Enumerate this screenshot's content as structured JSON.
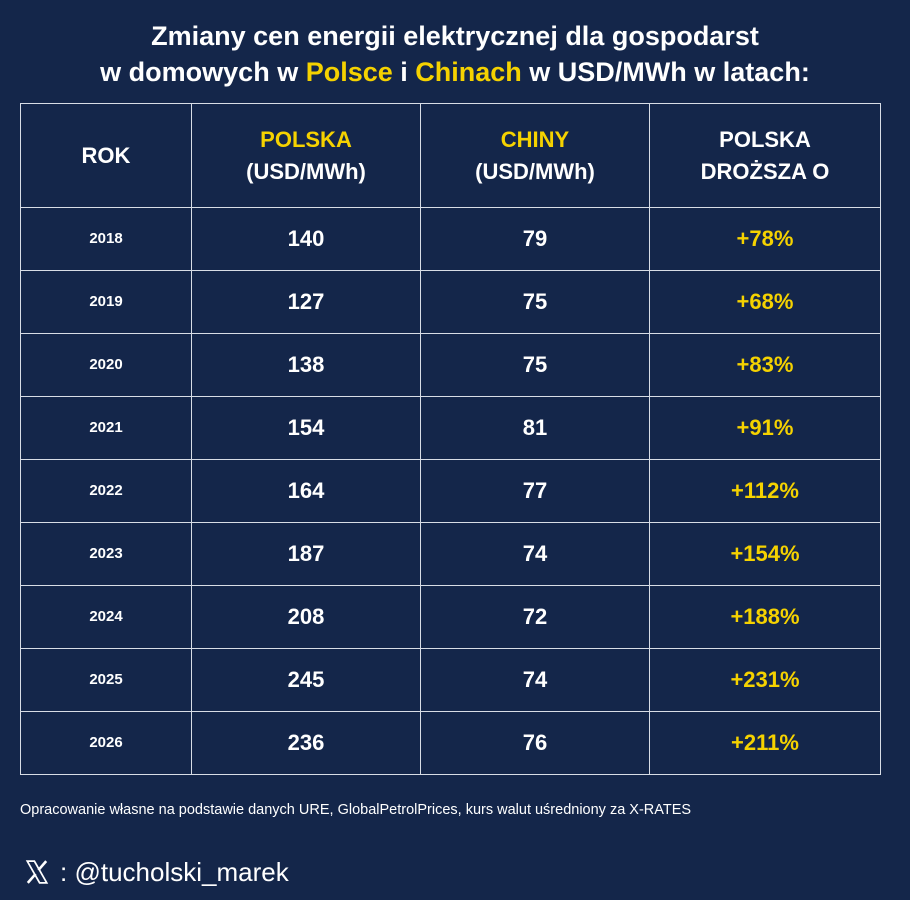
{
  "title": {
    "line1": "Zmiany cen energii elektrycznej dla gospodarst",
    "line2_part1": "w domowych w ",
    "line2_polska": "Polsce",
    "line2_part2": " i ",
    "line2_chiny": "Chinach",
    "line2_part3": " w USD/MWh w latach:"
  },
  "headers": {
    "rok": "ROK",
    "polska": "POLSKA",
    "polska_unit": "(USD/MWh)",
    "chiny": "CHINY",
    "chiny_unit": "(USD/MWh)",
    "diff_line1": "POLSKA",
    "diff_line2": "DROŻSZA O"
  },
  "chart_data": {
    "type": "table",
    "columns": [
      "ROK",
      "POLSKA (USD/MWh)",
      "CHINY (USD/MWh)",
      "POLSKA DROŻSZA O"
    ],
    "rows": [
      {
        "year": "2018",
        "polska": "140",
        "chiny": "79",
        "diff": "+78%"
      },
      {
        "year": "2019",
        "polska": "127",
        "chiny": "75",
        "diff": "+68%"
      },
      {
        "year": "2020",
        "polska": "138",
        "chiny": "75",
        "diff": "+83%"
      },
      {
        "year": "2021",
        "polska": "154",
        "chiny": "81",
        "diff": "+91%"
      },
      {
        "year": "2022",
        "polska": "164",
        "chiny": "77",
        "diff": "+112%"
      },
      {
        "year": "2023",
        "polska": "187",
        "chiny": "74",
        "diff": "+154%"
      },
      {
        "year": "2024",
        "polska": "208",
        "chiny": "72",
        "diff": "+188%"
      },
      {
        "year": "2025",
        "polska": "245",
        "chiny": "74",
        "diff": "+231%"
      },
      {
        "year": "2026",
        "polska": "236",
        "chiny": "76",
        "diff": "+211%"
      }
    ]
  },
  "footer": {
    "source": "Opracowanie własne na podstawie danych URE, GlobalPetrolPrices, kurs walut uśredniony za X-RATES",
    "handle": ": @tucholski_marek",
    "icon": "x-logo-icon"
  },
  "colors": {
    "background": "#14264a",
    "accent": "#f5d200",
    "text": "#ffffff",
    "grid": "#d8dde6"
  }
}
